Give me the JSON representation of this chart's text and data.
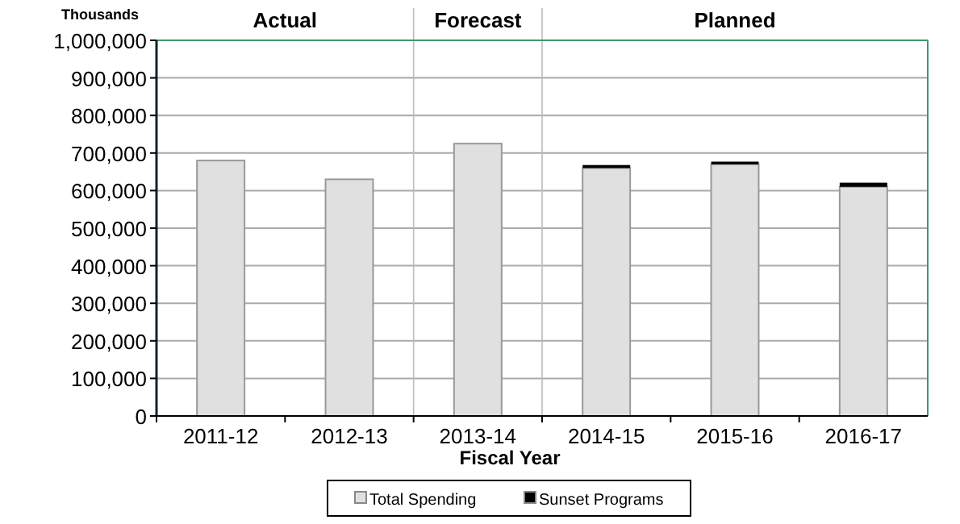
{
  "chart_data": {
    "type": "bar",
    "stacked": true,
    "xlabel": "Fiscal Year",
    "ylabel": "Thousands",
    "categories": [
      "2011-12",
      "2012-13",
      "2013-14",
      "2014-15",
      "2015-16",
      "2016-17"
    ],
    "series": [
      {
        "name": "Total Spending",
        "color": "#e0e0e0",
        "values": [
          680000,
          630000,
          725000,
          660000,
          670000,
          610000
        ]
      },
      {
        "name": "Sunset Programs",
        "color": "#000000",
        "values": [
          0,
          0,
          0,
          8000,
          7000,
          11000
        ]
      }
    ],
    "ylim": [
      0,
      1000000
    ],
    "yticks": [
      {
        "value": 0,
        "label": "0"
      },
      {
        "value": 100000,
        "label": "100,000"
      },
      {
        "value": 200000,
        "label": "200,000"
      },
      {
        "value": 300000,
        "label": "300,000"
      },
      {
        "value": 400000,
        "label": "400,000"
      },
      {
        "value": 500000,
        "label": "500,000"
      },
      {
        "value": 600000,
        "label": "600,000"
      },
      {
        "value": 700000,
        "label": "700,000"
      },
      {
        "value": 800000,
        "label": "800,000"
      },
      {
        "value": 900000,
        "label": "900,000"
      },
      {
        "value": 1000000,
        "label": "1,000,000"
      }
    ],
    "annotations": [
      "Actual",
      "Forecast",
      "Planned"
    ],
    "grid": "y",
    "legend": "bottom"
  }
}
